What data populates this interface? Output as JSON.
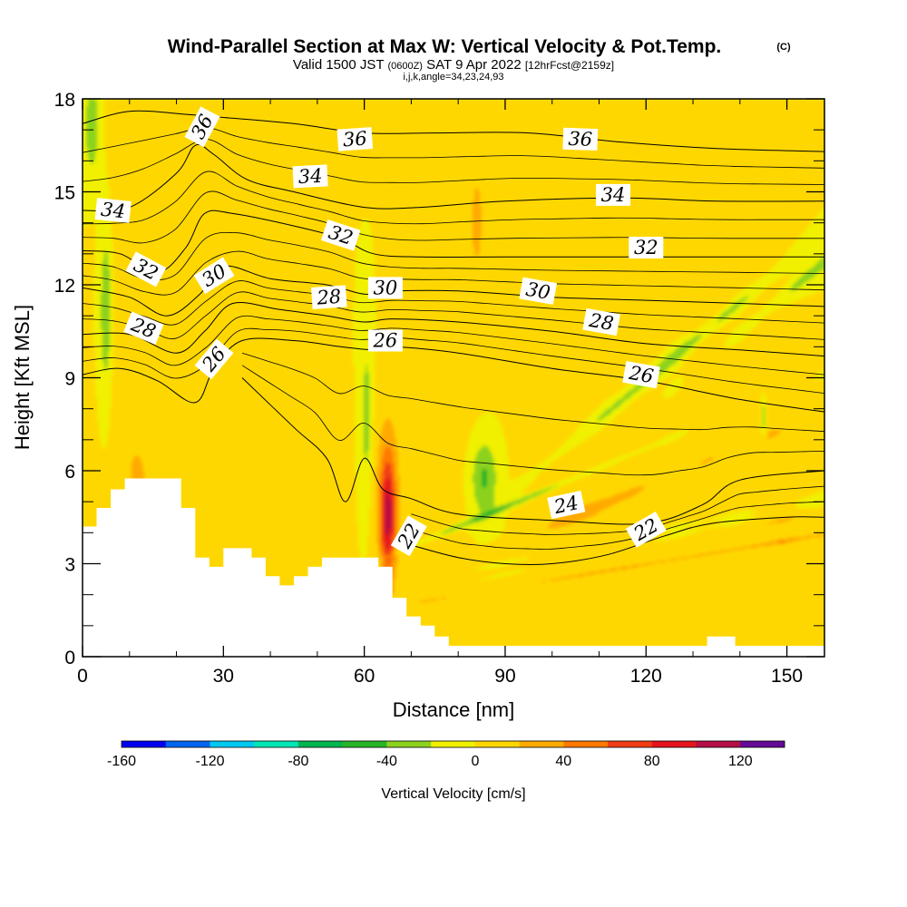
{
  "chart_data": {
    "type": "heatmap",
    "title": "Wind-Parallel Section at Max W: Vertical Velocity & Pot.Temp.",
    "title_mark": "(C)",
    "subtitle_parts": [
      "Valid 1500 JST",
      "(0600Z)",
      "SAT 9 Apr 2022",
      "[12hrFcst@2159z]"
    ],
    "subtitle2": "i,j,k,angle=34,23,24,93",
    "xlabel": "Distance [nm]",
    "ylabel": "Height [Kft MSL]",
    "xlim": [
      0,
      158
    ],
    "ylim": [
      0,
      18
    ],
    "x_ticks": [
      0,
      30,
      60,
      90,
      120,
      150
    ],
    "y_ticks": [
      0,
      3,
      6,
      9,
      12,
      15,
      18
    ],
    "x_tick_labels": [
      "0",
      "30",
      "60",
      "90",
      "120",
      "150"
    ],
    "y_tick_labels": [
      "0",
      "3",
      "6",
      "9",
      "12",
      "15",
      "18"
    ],
    "colorbar": {
      "label": "Vertical Velocity [cm/s]",
      "min": -160,
      "step": 20,
      "tick_values": [
        -160,
        -120,
        -80,
        -40,
        0,
        40,
        80,
        120
      ],
      "tick_labels": [
        "-160",
        "-120",
        "-80",
        "-40",
        "0",
        "40",
        "80",
        "120"
      ],
      "colors": [
        "#0000f0",
        "#0064f0",
        "#00c8f0",
        "#00e6b4",
        "#00b450",
        "#28b428",
        "#8cd21e",
        "#f0f000",
        "#ffd700",
        "#ffaa00",
        "#ff7800",
        "#f03c14",
        "#e6141e",
        "#b40f46",
        "#640a96"
      ]
    },
    "background_color": "#f0f000",
    "w_features": [
      {
        "x": 22,
        "y": 0.5,
        "sx": 2.5,
        "sy": 0.3,
        "r": 0.25,
        "value": 70
      },
      {
        "x": 24,
        "y": 0.7,
        "sx": 1.4,
        "sy": 0.2,
        "r": 0.25,
        "value": 40
      },
      {
        "x": 13.5,
        "y": 0.6,
        "sx": 2.5,
        "sy": 0.25,
        "r": 0.2,
        "value": -50
      },
      {
        "x": 18,
        "y": 0.27,
        "sx": 1.6,
        "sy": 0.09,
        "r": 0.1,
        "value": -40
      },
      {
        "x": 32,
        "y": 0.6,
        "sx": 2.2,
        "sy": 0.25,
        "r": 0.18,
        "value": -50
      },
      {
        "x": 26,
        "y": 0.5,
        "sx": 2.2,
        "sy": 0.26,
        "r": 0.2,
        "value": 25
      },
      {
        "x": 5,
        "y": 0.62,
        "sx": 1.3,
        "sy": 0.15,
        "r": 0,
        "value": -40
      },
      {
        "x": 2,
        "y": 0.95,
        "sx": 1.5,
        "sy": 0.08,
        "r": 0,
        "value": -40
      },
      {
        "x": 9,
        "y": 0.6,
        "sx": 4,
        "sy": 0.35,
        "r": 0,
        "value": 12
      },
      {
        "x": 12,
        "y": 0.32,
        "sx": 3,
        "sy": 0.08,
        "r": 0,
        "value": 20
      },
      {
        "x": 38,
        "y": 0.3,
        "sx": 3.5,
        "sy": 0.2,
        "r": 0.1,
        "value": 12
      },
      {
        "x": 50,
        "y": 0.33,
        "sx": 4,
        "sy": 0.16,
        "r": 0,
        "value": 15
      },
      {
        "x": 48,
        "y": 0.55,
        "sx": 3,
        "sy": 0.3,
        "r": 0,
        "value": 10
      },
      {
        "x": 54,
        "y": 0.55,
        "sx": 2.2,
        "sy": 0.2,
        "r": 0.05,
        "value": -35
      },
      {
        "x": 64,
        "y": 0.82,
        "sx": 2.2,
        "sy": 0.2,
        "r": 0.05,
        "value": -45
      },
      {
        "x": 60.5,
        "y": 0.43,
        "sx": 1.2,
        "sy": 0.15,
        "r": 0,
        "value": -30
      },
      {
        "x": 65,
        "y": 0.25,
        "sx": 1.5,
        "sy": 0.1,
        "r": 0,
        "value": 85
      },
      {
        "x": 65,
        "y": 0.3,
        "sx": 3,
        "sy": 0.16,
        "r": 0,
        "value": 30
      },
      {
        "x": 78,
        "y": 0.6,
        "sx": 8,
        "sy": 0.4,
        "r": 0,
        "value": 8
      },
      {
        "x": 84,
        "y": 0.78,
        "sx": 1.2,
        "sy": 0.08,
        "r": 0,
        "value": 30
      },
      {
        "x": 73,
        "y": 0.15,
        "sx": 6,
        "sy": 0.1,
        "r": 0,
        "value": 12
      },
      {
        "x": 85.5,
        "y": 0.32,
        "sx": 2.8,
        "sy": 0.07,
        "r": 0,
        "value": -45
      },
      {
        "x": 100,
        "y": 0.5,
        "sx": 6,
        "sy": 0.35,
        "r": 0,
        "value": 10
      },
      {
        "x": 108,
        "y": 0.25,
        "sx": 8,
        "sy": 0.12,
        "r": 0,
        "value": 15
      },
      {
        "x": 118,
        "y": 0.35,
        "sx": 5,
        "sy": 0.3,
        "r": 0,
        "value": 8
      },
      {
        "x": 133,
        "y": 0.55,
        "sx": 4,
        "sy": 0.3,
        "r": 0,
        "value": 15
      },
      {
        "x": 146,
        "y": 0.45,
        "sx": 4,
        "sy": 0.4,
        "r": 0,
        "value": 12
      },
      {
        "x": 150,
        "y": 0.2,
        "sx": 3,
        "sy": 0.2,
        "r": 0,
        "value": 12
      },
      {
        "x": 145,
        "y": 0.43,
        "sx": 0.6,
        "sy": 0.04,
        "r": 0,
        "value": -40
      },
      {
        "x": 140,
        "y": 0.8,
        "sx": 6,
        "sy": 0.18,
        "r": 0,
        "value": 10
      },
      {
        "x": 118,
        "y": 0.9,
        "sx": 10,
        "sy": 0.1,
        "r": 0,
        "value": 8
      },
      {
        "x": 70,
        "y": 0.95,
        "sx": 10,
        "sy": 0.08,
        "r": 0,
        "value": 10
      }
    ],
    "terrain_kft": [
      [
        0,
        4.2
      ],
      [
        3,
        4.2
      ],
      [
        3,
        4.8
      ],
      [
        6,
        4.8
      ],
      [
        6,
        5.4
      ],
      [
        9,
        5.4
      ],
      [
        9,
        5.75
      ],
      [
        21,
        5.75
      ],
      [
        21,
        4.8
      ],
      [
        24,
        4.8
      ],
      [
        24,
        3.2
      ],
      [
        27,
        3.2
      ],
      [
        27,
        2.9
      ],
      [
        30,
        2.9
      ],
      [
        30,
        3.5
      ],
      [
        36,
        3.5
      ],
      [
        36,
        3.2
      ],
      [
        39,
        3.2
      ],
      [
        39,
        2.6
      ],
      [
        42,
        2.6
      ],
      [
        42,
        2.3
      ],
      [
        45,
        2.3
      ],
      [
        45,
        2.6
      ],
      [
        48,
        2.6
      ],
      [
        48,
        2.9
      ],
      [
        51,
        2.9
      ],
      [
        51,
        3.2
      ],
      [
        63,
        3.2
      ],
      [
        63,
        2.9
      ],
      [
        66,
        2.9
      ],
      [
        66,
        1.9
      ],
      [
        69,
        1.9
      ],
      [
        69,
        1.3
      ],
      [
        72,
        1.3
      ],
      [
        72,
        1.0
      ],
      [
        75,
        1.0
      ],
      [
        75,
        0.65
      ],
      [
        78,
        0.65
      ],
      [
        78,
        0.35
      ],
      [
        133,
        0.35
      ],
      [
        133,
        0.65
      ],
      [
        139,
        0.65
      ],
      [
        139,
        0.35
      ],
      [
        158,
        0.35
      ]
    ],
    "isentropes": [
      {
        "value": 36,
        "points": [
          [
            0,
            17.2
          ],
          [
            10,
            17.6
          ],
          [
            22,
            17.5
          ],
          [
            30,
            17.4
          ],
          [
            45,
            17.2
          ],
          [
            60,
            16.9
          ],
          [
            75,
            16.9
          ],
          [
            95,
            16.9
          ],
          [
            115,
            16.6
          ],
          [
            135,
            16.4
          ],
          [
            158,
            16.3
          ]
        ]
      },
      {
        "value": 34,
        "points": [
          [
            0,
            14.4
          ],
          [
            10,
            14.5
          ],
          [
            20,
            15.6
          ],
          [
            24,
            16.5
          ],
          [
            28,
            16.2
          ],
          [
            35,
            15.4
          ],
          [
            45,
            15.0
          ],
          [
            60,
            14.5
          ],
          [
            72,
            14.5
          ],
          [
            90,
            14.7
          ],
          [
            115,
            14.8
          ],
          [
            135,
            14.7
          ],
          [
            158,
            14.7
          ]
        ]
      },
      {
        "value": 32,
        "points": [
          [
            0,
            13.1
          ],
          [
            8,
            13.0
          ],
          [
            16,
            12.4
          ],
          [
            22,
            13.2
          ],
          [
            26,
            14.3
          ],
          [
            32,
            14.3
          ],
          [
            45,
            13.9
          ],
          [
            55,
            13.5
          ],
          [
            62,
            13.0
          ],
          [
            72,
            12.9
          ],
          [
            90,
            12.9
          ],
          [
            115,
            12.9
          ],
          [
            135,
            12.9
          ],
          [
            158,
            12.9
          ]
        ]
      },
      {
        "value": 30,
        "points": [
          [
            0,
            11.9
          ],
          [
            10,
            11.6
          ],
          [
            18,
            11.0
          ],
          [
            25,
            11.7
          ],
          [
            30,
            12.6
          ],
          [
            40,
            12.2
          ],
          [
            52,
            12.0
          ],
          [
            60,
            11.7
          ],
          [
            66,
            11.8
          ],
          [
            80,
            11.8
          ],
          [
            100,
            11.6
          ],
          [
            120,
            11.5
          ],
          [
            140,
            11.4
          ],
          [
            158,
            11.3
          ]
        ]
      },
      {
        "value": 28,
        "points": [
          [
            0,
            10.4
          ],
          [
            10,
            10.4
          ],
          [
            20,
            9.8
          ],
          [
            26,
            10.5
          ],
          [
            32,
            11.4
          ],
          [
            42,
            11.2
          ],
          [
            52,
            11.0
          ],
          [
            60,
            10.8
          ],
          [
            66,
            10.9
          ],
          [
            80,
            10.8
          ],
          [
            100,
            10.5
          ],
          [
            120,
            10.1
          ],
          [
            140,
            9.9
          ],
          [
            158,
            9.7
          ]
        ]
      },
      {
        "value": 26,
        "points": [
          [
            0,
            9.1
          ],
          [
            8,
            9.3
          ],
          [
            16,
            8.9
          ],
          [
            24,
            8.2
          ],
          [
            28,
            9.3
          ],
          [
            34,
            10.2
          ],
          [
            45,
            10.2
          ],
          [
            55,
            10.0
          ],
          [
            62,
            9.9
          ],
          [
            66,
            10.0
          ],
          [
            80,
            9.8
          ],
          [
            100,
            9.3
          ],
          [
            120,
            8.9
          ],
          [
            140,
            8.3
          ],
          [
            158,
            7.9
          ]
        ]
      },
      {
        "value": 24,
        "points": [
          [
            34,
            9.0
          ],
          [
            45,
            7.4
          ],
          [
            52,
            6.4
          ],
          [
            56,
            5.0
          ],
          [
            60,
            6.4
          ],
          [
            64,
            5.4
          ],
          [
            70,
            5.1
          ],
          [
            80,
            4.6
          ],
          [
            100,
            4.4
          ],
          [
            120,
            4.3
          ],
          [
            132,
            4.9
          ],
          [
            140,
            5.7
          ],
          [
            158,
            6.0
          ]
        ]
      },
      {
        "value": 22,
        "points": [
          [
            70,
            3.6
          ],
          [
            80,
            3.2
          ],
          [
            90,
            3.0
          ],
          [
            100,
            3.0
          ],
          [
            112,
            3.3
          ],
          [
            124,
            3.9
          ],
          [
            134,
            4.3
          ],
          [
            150,
            4.5
          ],
          [
            158,
            4.5
          ]
        ]
      }
    ],
    "isentrope_labels": [
      {
        "value": "36",
        "x": 25.5,
        "y": 17.1,
        "angle": -62
      },
      {
        "value": "36",
        "x": 58,
        "y": 16.7,
        "angle": -4
      },
      {
        "value": "36",
        "x": 106,
        "y": 16.7,
        "angle": 2
      },
      {
        "value": "34",
        "x": 6.5,
        "y": 14.4,
        "angle": 6
      },
      {
        "value": "34",
        "x": 48.5,
        "y": 15.5,
        "angle": -3
      },
      {
        "value": "34",
        "x": 113,
        "y": 14.9,
        "angle": 0
      },
      {
        "value": "32",
        "x": 13.5,
        "y": 12.5,
        "angle": 28
      },
      {
        "value": "32",
        "x": 55,
        "y": 13.6,
        "angle": 18
      },
      {
        "value": "32",
        "x": 120,
        "y": 13.2,
        "angle": 0
      },
      {
        "value": "30",
        "x": 28,
        "y": 12.3,
        "angle": -32
      },
      {
        "value": "30",
        "x": 64.5,
        "y": 11.9,
        "angle": 0
      },
      {
        "value": "30",
        "x": 97,
        "y": 11.8,
        "angle": 10
      },
      {
        "value": "28",
        "x": 13,
        "y": 10.6,
        "angle": 22
      },
      {
        "value": "28",
        "x": 52.5,
        "y": 11.6,
        "angle": -4
      },
      {
        "value": "28",
        "x": 110.5,
        "y": 10.8,
        "angle": 10
      },
      {
        "value": "26",
        "x": 28,
        "y": 9.6,
        "angle": -50
      },
      {
        "value": "26",
        "x": 64.5,
        "y": 10.2,
        "angle": 0
      },
      {
        "value": "26",
        "x": 119,
        "y": 9.1,
        "angle": 10
      },
      {
        "value": "24",
        "x": 103,
        "y": 4.9,
        "angle": -12
      },
      {
        "value": "22",
        "x": 69.5,
        "y": 3.9,
        "angle": -60
      },
      {
        "value": "22",
        "x": 120,
        "y": 4.1,
        "angle": -30
      }
    ]
  }
}
